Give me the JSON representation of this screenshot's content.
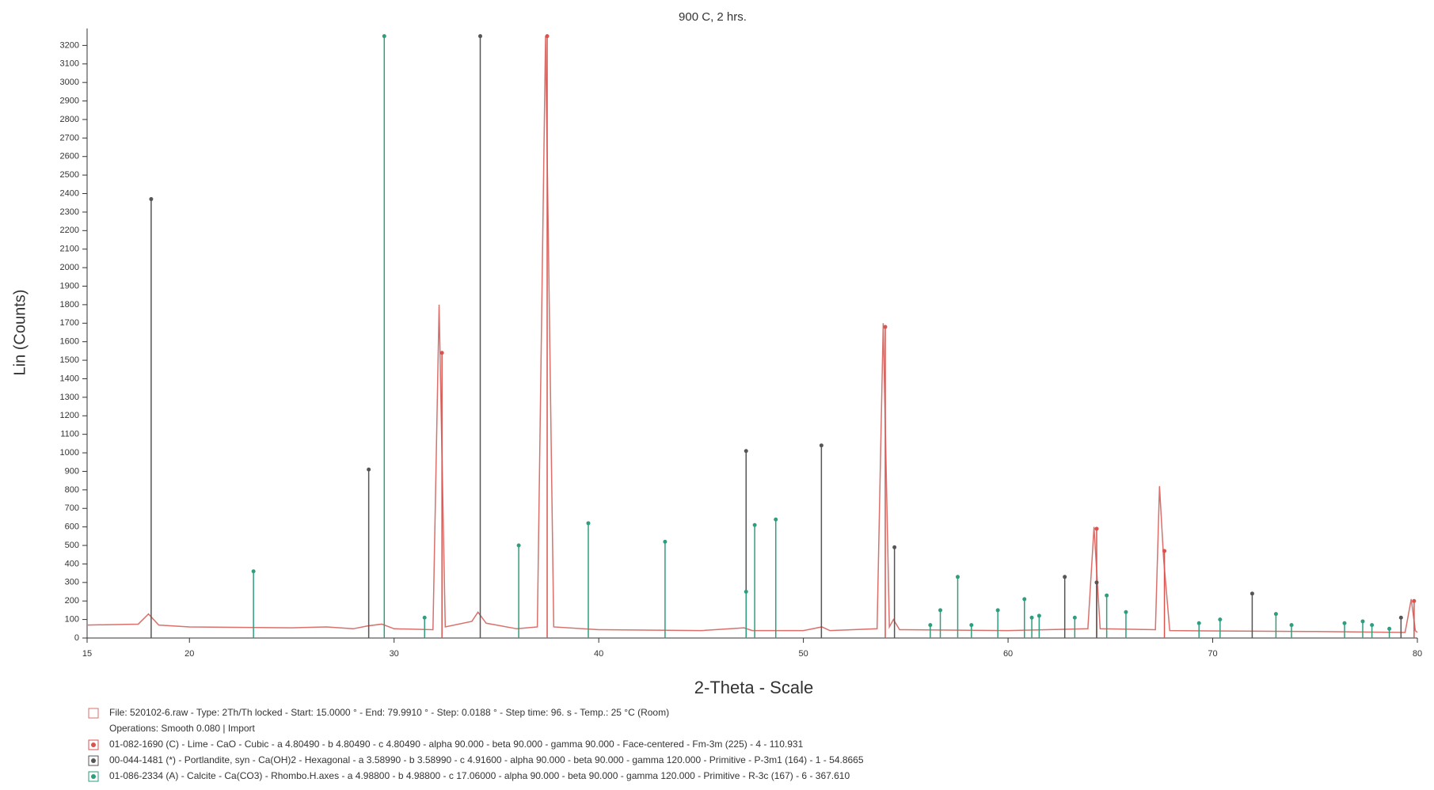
{
  "chart_data": {
    "type": "line",
    "title": "900 C, 2 hrs.",
    "x_label": "2-Theta - Scale",
    "y_label": "Lin (Counts)",
    "xlim": [
      15,
      80
    ],
    "ylim": [
      0,
      3270
    ],
    "xticks": [
      15,
      20,
      30,
      40,
      50,
      60,
      70,
      80
    ],
    "yticks": [
      0,
      100,
      200,
      300,
      400,
      500,
      600,
      700,
      800,
      900,
      1000,
      1100,
      1200,
      1300,
      1400,
      1500,
      1600,
      1700,
      1800,
      1900,
      2000,
      2100,
      2200,
      2300,
      2400,
      2500,
      2600,
      2700,
      2800,
      2900,
      3000,
      3100,
      3200
    ],
    "series": [
      {
        "name": "File: 520102-6.raw - Type: 2Th/Th locked - Start: 15.0000 ° - End: 79.9910 ° - Step: 0.0188 ° - Step time: 96. s - Temp.: 25 °C (Room)",
        "color": "#d9706b",
        "x": [
          15,
          17.5,
          18.0,
          18.5,
          20,
          25,
          26.7,
          28,
          28.7,
          29.4,
          30,
          31.9,
          32.2,
          32.5,
          33.8,
          34.1,
          34.5,
          36,
          37.0,
          37.4,
          37.8,
          40,
          45,
          47.1,
          47.5,
          50,
          50.9,
          51.3,
          53.6,
          53.9,
          54.2,
          54.4,
          54.7,
          60,
          63.9,
          64.2,
          64.5,
          67.2,
          67.4,
          67.6,
          67.9,
          75,
          79.4,
          79.7,
          79.9,
          80
        ],
        "values": [
          70,
          75,
          130,
          70,
          60,
          55,
          60,
          50,
          65,
          75,
          50,
          45,
          1800,
          60,
          90,
          140,
          80,
          50,
          60,
          3250,
          60,
          45,
          40,
          55,
          40,
          40,
          60,
          40,
          50,
          1700,
          60,
          100,
          45,
          40,
          50,
          600,
          50,
          45,
          820,
          430,
          40,
          35,
          30,
          210,
          40,
          30
        ]
      }
    ],
    "operations": "Operations: Smooth 0.080 | Import",
    "sticks": [
      {
        "name": "01-082-1690 (C) - Lime - CaO - Cubic - a 4.80490 - b 4.80490 - c 4.80490 - alpha 90.000 - beta 90.000 - gamma 90.000 - Face-centered - Fm-3m (225) - 4 - 110.931",
        "color": "#d9534f",
        "x": [
          32.34,
          37.48,
          54.0,
          64.33,
          67.64,
          79.84
        ],
        "values": [
          1540,
          3250,
          1680,
          590,
          470,
          200
        ]
      },
      {
        "name": "00-044-1481 (*) - Portlandite, syn - Ca(OH)2 - Hexagonal - a 3.58990 - b 3.58990 - c 4.91600 - alpha 90.000 - beta 90.000 - gamma 120.000 - Primitive - P-3m1 (164) - 1 - 54.8665",
        "color": "#555555",
        "x": [
          18.13,
          28.76,
          34.21,
          47.2,
          50.88,
          54.45,
          62.77,
          64.33,
          71.93,
          79.2
        ],
        "values": [
          2370,
          910,
          3250,
          1010,
          1040,
          490,
          330,
          300,
          240,
          110
        ]
      },
      {
        "name": "01-086-2334 (A) - Calcite - Ca(CO3) - Rhombo.H.axes - a 4.98800 - b 4.98800 - c 17.06000 - alpha 90.000 - beta 90.000 - gamma 120.000 - Primitive - R-3c (167) - 6 - 367.610",
        "color": "#2e9e7e",
        "x": [
          23.13,
          29.52,
          31.49,
          36.09,
          39.49,
          43.24,
          47.2,
          47.62,
          48.65,
          56.2,
          56.69,
          57.54,
          58.21,
          59.5,
          60.8,
          61.16,
          61.52,
          63.26,
          64.82,
          65.76,
          69.33,
          70.36,
          73.09,
          73.85,
          76.44,
          77.33,
          77.78,
          78.63
        ],
        "values": [
          360,
          3250,
          110,
          500,
          620,
          520,
          250,
          610,
          640,
          70,
          150,
          330,
          70,
          150,
          210,
          110,
          120,
          110,
          230,
          140,
          80,
          100,
          130,
          70,
          80,
          90,
          70,
          50
        ]
      }
    ]
  }
}
